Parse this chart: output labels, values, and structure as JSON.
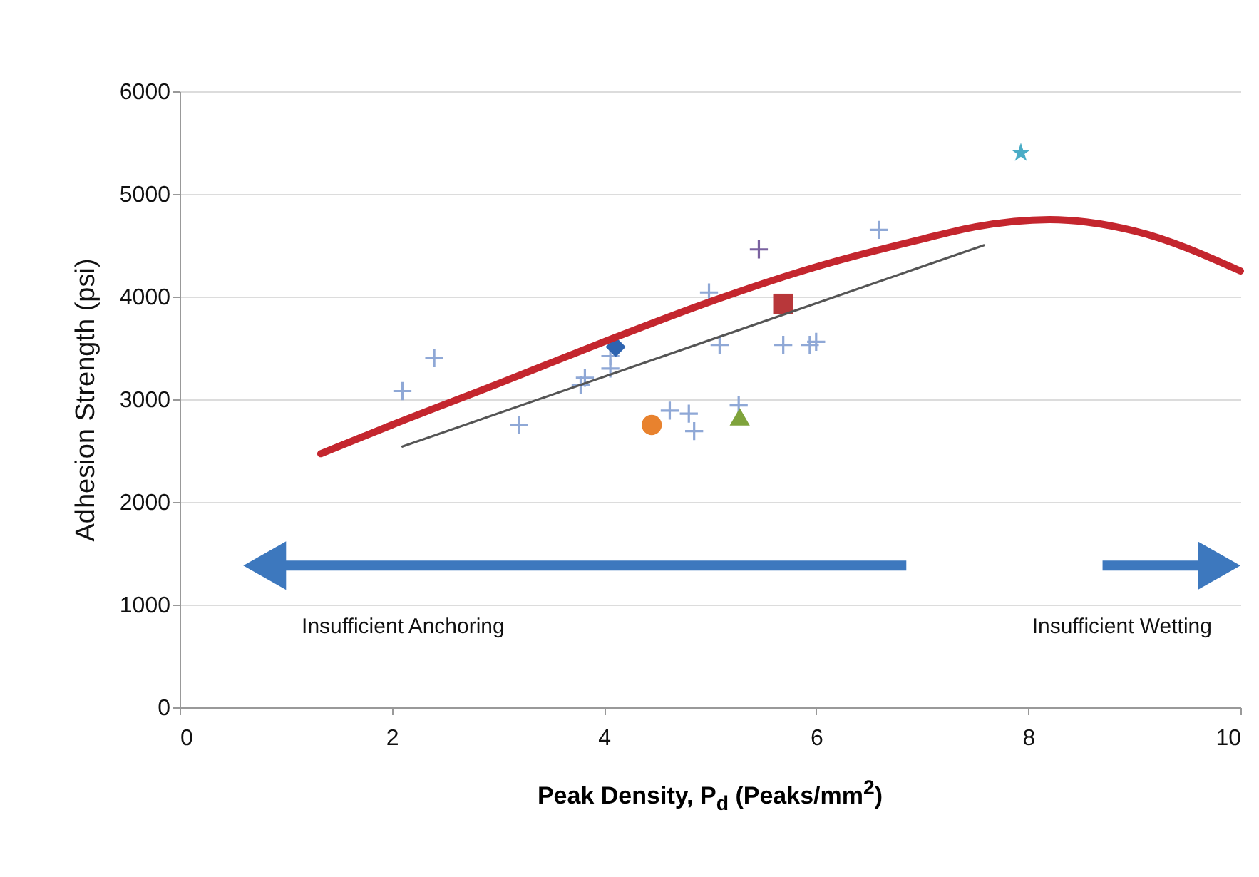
{
  "chart_data": {
    "type": "scatter",
    "xlabel": "Peak Density, P$_{d}$ (Peaks/mm$^{2}$)",
    "ylabel": "Adhesion Strength (psi)",
    "xlim": [
      0,
      10
    ],
    "xticks": [
      0,
      2,
      4,
      6,
      8,
      10
    ],
    "ylim": [
      0,
      6000
    ],
    "yticks": [
      0,
      1000,
      2000,
      3000,
      4000,
      5000,
      6000
    ],
    "grid": "y",
    "annotations": [
      "Insufficient  Anchoring",
      "Insufficient Wetting"
    ],
    "series": [
      {
        "marker": "cross",
        "color": "#8fa8d6",
        "x": [
          2.1,
          2.4,
          3.2,
          3.78,
          3.82,
          4.06,
          4.06,
          4.99,
          5.09,
          4.62,
          4.8,
          4.85,
          5.27,
          5.69,
          5.94,
          6.0,
          6.59
        ],
        "values": [
          3080,
          3400,
          2750,
          3140,
          3210,
          3300,
          3420,
          4040,
          3530,
          2890,
          2860,
          2690,
          2940,
          3530,
          3530,
          3560,
          4650
        ]
      },
      {
        "marker": "diamond",
        "color": "#2e64b0",
        "x": [
          4.11
        ],
        "values": [
          3510
        ]
      },
      {
        "marker": "circle",
        "color": "#e8822e",
        "x": [
          4.45
        ],
        "values": [
          2750
        ]
      },
      {
        "marker": "triangle",
        "color": "#7fa33c",
        "x": [
          5.28
        ],
        "values": [
          2830
        ]
      },
      {
        "marker": "square",
        "color": "#b8373a",
        "x": [
          5.69
        ],
        "values": [
          3930
        ]
      },
      {
        "marker": "cross",
        "color": "#7a62a0",
        "x": [
          5.46
        ],
        "values": [
          4460
        ]
      },
      {
        "marker": "star",
        "color": "#4aacc6",
        "x": [
          7.93
        ],
        "values": [
          5400
        ]
      },
      {
        "type": "line",
        "color": "#c4262e",
        "x": [
          1.33,
          2,
          3,
          4,
          5,
          6,
          7,
          7.5,
          8.2,
          9,
          10
        ],
        "values": [
          2470,
          2750,
          3150,
          3560,
          3950,
          4290,
          4560,
          4680,
          4750,
          4640,
          4250
        ]
      },
      {
        "type": "line",
        "color": "#555555",
        "x": [
          2.1,
          7.58
        ],
        "values": [
          2540,
          4500
        ]
      }
    ]
  }
}
